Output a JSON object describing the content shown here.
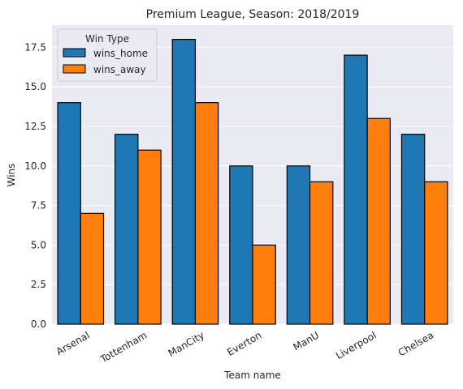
{
  "chart_data": {
    "type": "bar",
    "title": "Premium League, Season: 2018/2019",
    "xlabel": "Team name",
    "ylabel": "Wins",
    "categories": [
      "Arsenal",
      "Tottenham",
      "ManCity",
      "Everton",
      "ManU",
      "Liverpool",
      "Chelsea"
    ],
    "series": [
      {
        "name": "wins_home",
        "values": [
          14,
          12,
          18,
          10,
          10,
          17,
          12
        ],
        "color": "#1f77b4"
      },
      {
        "name": "wins_away",
        "values": [
          7,
          11,
          14,
          5,
          9,
          13,
          9
        ],
        "color": "#ff7f0e"
      }
    ],
    "ylim": [
      0,
      18.9
    ],
    "yticks": [
      "0.0",
      "2.5",
      "5.0",
      "7.5",
      "10.0",
      "12.5",
      "15.0",
      "17.5"
    ],
    "ytick_values": [
      0,
      2.5,
      5,
      7.5,
      10,
      12.5,
      15,
      17.5
    ],
    "legend": {
      "title": "Win Type",
      "placement": "top-left"
    },
    "grid": true,
    "background": "#eaeaf2",
    "bar_edge_color": "#000000"
  }
}
